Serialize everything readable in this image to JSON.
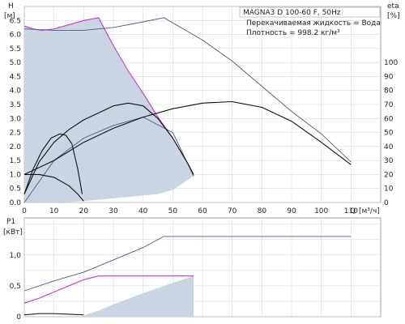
{
  "chart_data": [
    {
      "type": "line",
      "title": "MAGNA3 D 100-60 F, 50Hz",
      "annotations": [
        "Перекачиваемая жидкость = Вода",
        "Плотность = 998.2 кг/м³"
      ],
      "xlabel": "Q",
      "xunit": "[м³/ч]",
      "ylabel": "H",
      "yunit": "[м]",
      "y2label": "eta",
      "y2unit": "[%]",
      "xlim": [
        0,
        120
      ],
      "ylim": [
        0,
        7
      ],
      "y2lim": [
        0,
        140
      ],
      "xticks": [
        "0",
        "10",
        "20",
        "30",
        "40",
        "50",
        "60",
        "70",
        "80",
        "90",
        "100",
        "110"
      ],
      "yticks": [
        "0.0",
        "0.5",
        "1.0",
        "1.5",
        "2.0",
        "2.5",
        "3.0",
        "3.5",
        "4.0",
        "4.5",
        "5.0",
        "5.5",
        "6.0",
        "6.5"
      ],
      "y2ticks": [
        "0",
        "10",
        "20",
        "30",
        "40",
        "50",
        "60",
        "70",
        "80",
        "90",
        "100"
      ],
      "grid": true,
      "series": [
        {
          "color": "#cc33cc",
          "x": [
            0,
            3,
            6,
            10,
            15,
            20,
            25,
            30,
            35,
            40,
            45,
            50,
            55,
            57
          ],
          "y": [
            6.3,
            6.2,
            6.15,
            6.2,
            6.35,
            6.5,
            6.6,
            5.6,
            4.7,
            3.9,
            3.05,
            2.3,
            1.4,
            0.95
          ]
        },
        {
          "color": "#4a5a80",
          "x": [
            0,
            10,
            20,
            30,
            40,
            47,
            60,
            70,
            80,
            90,
            100,
            110
          ],
          "y": [
            6.2,
            6.15,
            6.15,
            6.25,
            6.45,
            6.6,
            5.8,
            5.05,
            4.15,
            3.25,
            2.45,
            1.45
          ]
        },
        {
          "color": "#4a5a80",
          "x": [
            0,
            10,
            20,
            30,
            40,
            50,
            57
          ],
          "y": [
            0,
            1.5,
            2.3,
            2.75,
            3.05,
            2.5,
            0.95
          ]
        },
        {
          "color": "#111111",
          "x": [
            0,
            5,
            10,
            15,
            20,
            25,
            30,
            35,
            40,
            45,
            50,
            55,
            57
          ],
          "y": [
            0.3,
            1.45,
            2.15,
            2.6,
            2.95,
            3.2,
            3.45,
            3.55,
            3.45,
            3.0,
            2.3,
            1.4,
            1.0
          ]
        },
        {
          "color": "#111111",
          "x": [
            0,
            3,
            6,
            9,
            12,
            14,
            16,
            18,
            19.5
          ],
          "y": [
            0.3,
            1.2,
            1.85,
            2.3,
            2.45,
            2.4,
            2.1,
            1.2,
            0.3
          ]
        },
        {
          "color": "#111111",
          "x": [
            0,
            10,
            20,
            30,
            40,
            50,
            60,
            70,
            80,
            90,
            100,
            110
          ],
          "y": [
            1.0,
            1.5,
            2.15,
            2.65,
            3.05,
            3.35,
            3.55,
            3.6,
            3.4,
            2.9,
            2.15,
            1.35
          ]
        },
        {
          "color": "#111111",
          "x": [
            0,
            5,
            10,
            15,
            18,
            20
          ],
          "y": [
            1.0,
            1.0,
            0.9,
            0.6,
            0.3,
            0.05
          ]
        }
      ],
      "shaded_region": {
        "color": "#c9d5e2",
        "x": [
          0,
          3,
          6,
          10,
          15,
          20,
          25,
          30,
          35,
          40,
          45,
          50,
          55,
          57,
          55,
          50,
          45,
          40,
          35,
          30,
          25,
          20,
          15,
          10,
          5,
          0
        ],
        "y": [
          6.3,
          6.2,
          6.15,
          6.2,
          6.35,
          6.5,
          6.6,
          5.6,
          4.7,
          3.9,
          3.05,
          2.3,
          1.4,
          0.95,
          0.8,
          0.45,
          0.3,
          0.25,
          0.2,
          0.15,
          0.1,
          0.05,
          0.02,
          0.0,
          0.0,
          0.0
        ]
      }
    },
    {
      "type": "line",
      "ylabel": "P1",
      "yunit": "[кВт]",
      "xlim": [
        0,
        120
      ],
      "ylim": [
        0,
        1.6
      ],
      "yticks": [
        "0",
        "0,5",
        "1,0"
      ],
      "grid": true,
      "series": [
        {
          "color": "#4a5a80",
          "x": [
            0,
            10,
            20,
            30,
            40,
            47,
            55,
            70,
            90,
            110
          ],
          "y": [
            0.42,
            0.58,
            0.72,
            0.92,
            1.12,
            1.3,
            1.3,
            1.3,
            1.3,
            1.3
          ]
        },
        {
          "color": "#cc33cc",
          "x": [
            0,
            5,
            10,
            15,
            20,
            25,
            30,
            40,
            50,
            57
          ],
          "y": [
            0.22,
            0.3,
            0.4,
            0.5,
            0.6,
            0.66,
            0.66,
            0.66,
            0.66,
            0.66
          ]
        },
        {
          "color": "#222222",
          "x": [
            0,
            5,
            10,
            15,
            20
          ],
          "y": [
            0.03,
            0.05,
            0.05,
            0.04,
            0.03
          ]
        }
      ],
      "shaded_region": {
        "color": "#c9d5e2",
        "x": [
          20,
          25,
          30,
          40,
          50,
          57,
          57,
          20
        ],
        "y": [
          0.02,
          0.1,
          0.2,
          0.38,
          0.55,
          0.66,
          0.0,
          0.0
        ]
      }
    }
  ]
}
